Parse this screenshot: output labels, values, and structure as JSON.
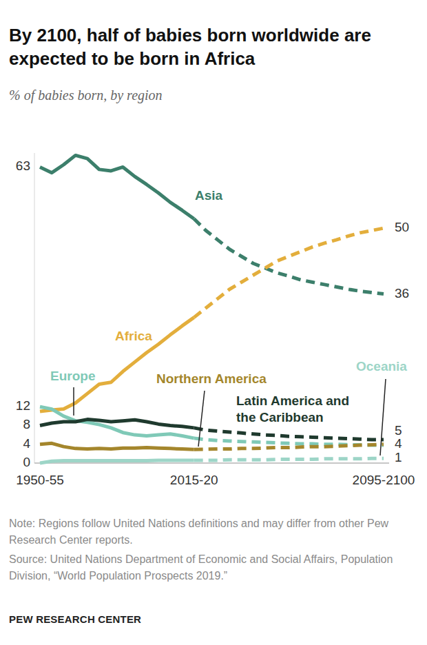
{
  "chart_data": {
    "type": "line",
    "title": "By 2100, half of babies born worldwide are expected to be born in Africa",
    "subtitle": "% of babies born, by region",
    "note": "Note: Regions follow United Nations definitions and may differ from other Pew Research Center reports.",
    "source": "Source: United Nations Department of Economic and Social Affairs, Population Division, “World Population Prospects 2019.”",
    "credit": "PEW RESEARCH CENTER",
    "categories": [
      "1950-55",
      null,
      null,
      null,
      null,
      null,
      null,
      null,
      null,
      null,
      null,
      null,
      null,
      "2015-20",
      null,
      null,
      null,
      null,
      null,
      null,
      null,
      null,
      null,
      null,
      null,
      null,
      null,
      null,
      null,
      "2095-2100"
    ],
    "ylim": [
      0,
      66
    ],
    "yticks": [
      0
    ],
    "grid": true,
    "tick_labels": "x",
    "series": [
      {
        "name": "Asia",
        "color": "#3c7f6b",
        "line_style": "solid",
        "data_labels": true,
        "values": [
          63,
          61.8,
          63.5,
          65.5,
          64.8,
          62.5,
          62.2,
          63,
          61,
          59.3,
          57.5,
          55.5,
          53.8,
          52,
          null,
          null,
          null,
          null,
          null,
          null,
          null,
          null,
          null,
          null,
          null,
          null,
          null,
          null,
          null,
          null
        ]
      },
      {
        "name": "Asia",
        "color": "#3c7f6b",
        "line_style": "dashed",
        "data_labels": true,
        "values": [
          null,
          null,
          null,
          null,
          null,
          null,
          null,
          null,
          null,
          null,
          null,
          null,
          null,
          52,
          49.5,
          47.5,
          45.5,
          44,
          42.5,
          41.5,
          40.5,
          39.8,
          39,
          38.5,
          38,
          37.5,
          37,
          36.6,
          36.3,
          36
        ]
      },
      {
        "name": "Africa",
        "color": "#e3ae3c",
        "line_style": "solid",
        "values": [
          11,
          11.3,
          11.5,
          12.8,
          14.8,
          16.8,
          17.2,
          19.5,
          21.5,
          23.5,
          25.3,
          27.3,
          29.2,
          31,
          null,
          null,
          null,
          null,
          null,
          null,
          null,
          null,
          null,
          null,
          null,
          null,
          null,
          null,
          null,
          null
        ]
      },
      {
        "name": "Africa",
        "color": "#e3ae3c",
        "line_style": "dashed",
        "data_labels": true,
        "values": [
          null,
          null,
          null,
          null,
          null,
          null,
          null,
          null,
          null,
          null,
          null,
          null,
          null,
          31,
          33,
          35,
          37,
          38.5,
          40,
          41.5,
          43,
          44,
          45,
          46,
          46.8,
          47.5,
          48.3,
          49,
          49.5,
          50
        ]
      },
      {
        "name": "Europe",
        "color": "#7fc9b7",
        "line_style": "solid",
        "data_labels": true,
        "values": [
          12,
          11.5,
          10,
          9,
          8.7,
          8.2,
          7.5,
          6.5,
          6,
          5.8,
          6,
          6.2,
          5.8,
          5.3,
          null,
          null,
          null,
          null,
          null,
          null,
          null,
          null,
          null,
          null,
          null,
          null,
          null,
          null,
          null,
          null
        ]
      },
      {
        "name": "Europe",
        "color": "#7fc9b7",
        "line_style": "dashed",
        "values": [
          null,
          null,
          null,
          null,
          null,
          null,
          null,
          null,
          null,
          null,
          null,
          null,
          null,
          5.3,
          5,
          4.8,
          4.7,
          4.6,
          4.5,
          4.4,
          4.3,
          4.2,
          4.1,
          4.1,
          4,
          4,
          3.9,
          3.9,
          3.8,
          3.8
        ]
      },
      {
        "name": "Northern America",
        "color": "#a4862c",
        "line_style": "solid",
        "data_labels": true,
        "values": [
          4,
          4.2,
          3.5,
          3.1,
          3,
          3.1,
          3,
          3.2,
          3.2,
          3.3,
          3.2,
          3.1,
          3,
          2.9,
          null,
          null,
          null,
          null,
          null,
          null,
          null,
          null,
          null,
          null,
          null,
          null,
          null,
          null,
          null,
          null
        ]
      },
      {
        "name": "Northern America",
        "color": "#a4862c",
        "line_style": "dashed",
        "data_labels": true,
        "values": [
          null,
          null,
          null,
          null,
          null,
          null,
          null,
          null,
          null,
          null,
          null,
          null,
          null,
          2.9,
          2.95,
          3,
          3,
          3.1,
          3.1,
          3.2,
          3.3,
          3.3,
          3.4,
          3.5,
          3.5,
          3.6,
          3.7,
          3.8,
          3.9,
          4
        ]
      },
      {
        "name": "Latin America and the Caribbean",
        "color": "#1f3a2e",
        "line_style": "solid",
        "data_labels": true,
        "values": [
          8,
          8.5,
          8.8,
          8.8,
          9.3,
          9.1,
          8.8,
          9,
          9.2,
          8.8,
          8.3,
          8,
          7.8,
          7.5,
          null,
          null,
          null,
          null,
          null,
          null,
          null,
          null,
          null,
          null,
          null,
          null,
          null,
          null,
          null,
          null
        ]
      },
      {
        "name": "Latin America and the Caribbean",
        "color": "#1f3a2e",
        "line_style": "dashed",
        "data_labels": true,
        "values": [
          null,
          null,
          null,
          null,
          null,
          null,
          null,
          null,
          null,
          null,
          null,
          null,
          null,
          7.5,
          7,
          6.8,
          6.6,
          6.4,
          6.2,
          6,
          5.9,
          5.7,
          5.6,
          5.5,
          5.4,
          5.3,
          5.2,
          5.1,
          5,
          5
        ]
      },
      {
        "name": "Oceania",
        "color": "#9dd5c7",
        "line_style": "solid",
        "data_labels": true,
        "values": [
          0,
          0.4,
          0.5,
          0.5,
          0.5,
          0.5,
          0.5,
          0.5,
          0.5,
          0.5,
          0.6,
          0.6,
          0.6,
          0.6,
          null,
          null,
          null,
          null,
          null,
          null,
          null,
          null,
          null,
          null,
          null,
          null,
          null,
          null,
          null,
          null
        ]
      },
      {
        "name": "Oceania",
        "color": "#9dd5c7",
        "line_style": "dashed",
        "data_labels": true,
        "values": [
          null,
          null,
          null,
          null,
          null,
          null,
          null,
          null,
          null,
          null,
          null,
          null,
          null,
          0.6,
          0.6,
          0.6,
          0.7,
          0.7,
          0.7,
          0.7,
          0.8,
          0.8,
          0.8,
          0.8,
          0.9,
          0.9,
          0.9,
          0.9,
          1,
          1
        ]
      }
    ]
  }
}
